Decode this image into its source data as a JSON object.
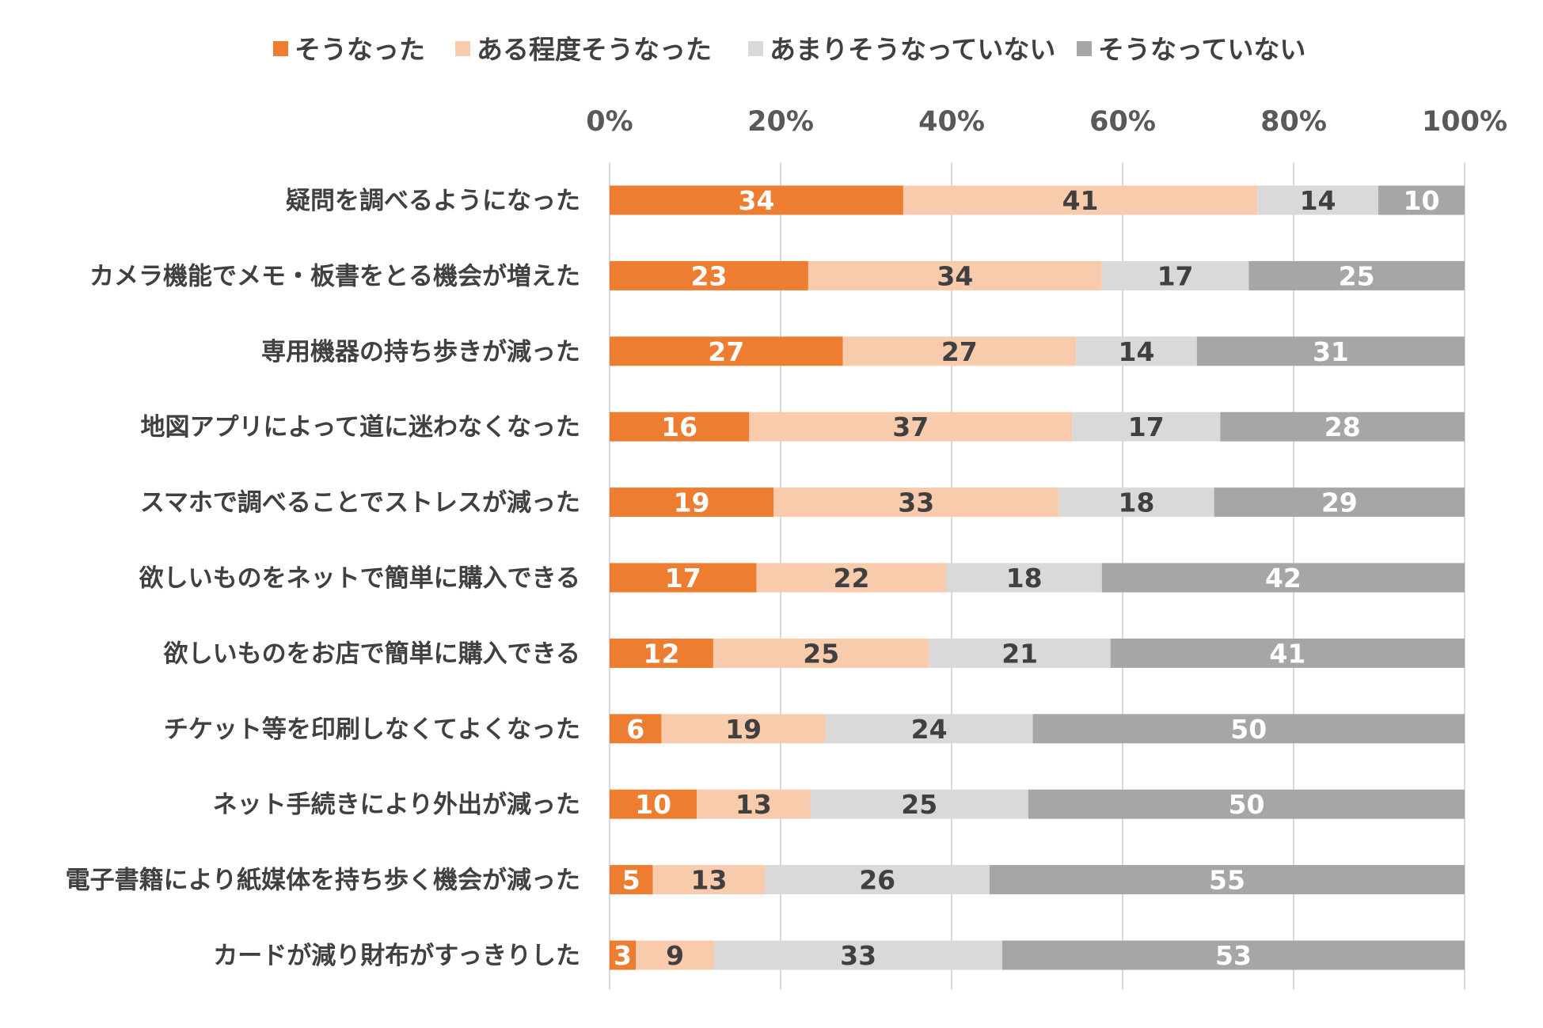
{
  "chart_data": {
    "type": "bar",
    "orientation": "horizontal",
    "stacked": true,
    "percent_stacked": true,
    "x_ticks": [
      "0%",
      "20%",
      "40%",
      "60%",
      "80%",
      "100%"
    ],
    "xlim": [
      0,
      100
    ],
    "grid": "vertical",
    "legend_position": "top",
    "categories": [
      "疑問を調べるようになった",
      "カメラ機能でメモ・板書をとる機会が増えた",
      "専用機器の持ち歩きが減った",
      "地図アプリによって道に迷わなくなった",
      "スマホで調べることでストレスが減った",
      "欲しいものをネットで簡単に購入できる",
      "欲しいものをお店で簡単に購入できる",
      "チケット等を印刷しなくてよくなった",
      "ネット手続きにより外出が減った",
      "電子書籍により紙媒体を持ち歩く機会が減った",
      "カードが減り財布がすっきりした"
    ],
    "series": [
      {
        "name": "そうなった",
        "color": "#ED7D31",
        "label_color": "#FFFFFF",
        "values": [
          34,
          23,
          27,
          16,
          19,
          17,
          12,
          6,
          10,
          5,
          3
        ]
      },
      {
        "name": "ある程度そうなった",
        "color": "#F8CBAD",
        "label_color": "#404040",
        "values": [
          41,
          34,
          27,
          37,
          33,
          22,
          25,
          19,
          13,
          13,
          9
        ]
      },
      {
        "name": "あまりそうなっていない",
        "color": "#D9D9D9",
        "label_color": "#404040",
        "values": [
          14,
          17,
          14,
          17,
          18,
          18,
          21,
          24,
          25,
          26,
          33
        ]
      },
      {
        "name": "そうなっていない",
        "color": "#A6A6A6",
        "label_color": "#FFFFFF",
        "values": [
          10,
          25,
          31,
          28,
          29,
          42,
          41,
          50,
          50,
          55,
          53
        ]
      }
    ]
  }
}
